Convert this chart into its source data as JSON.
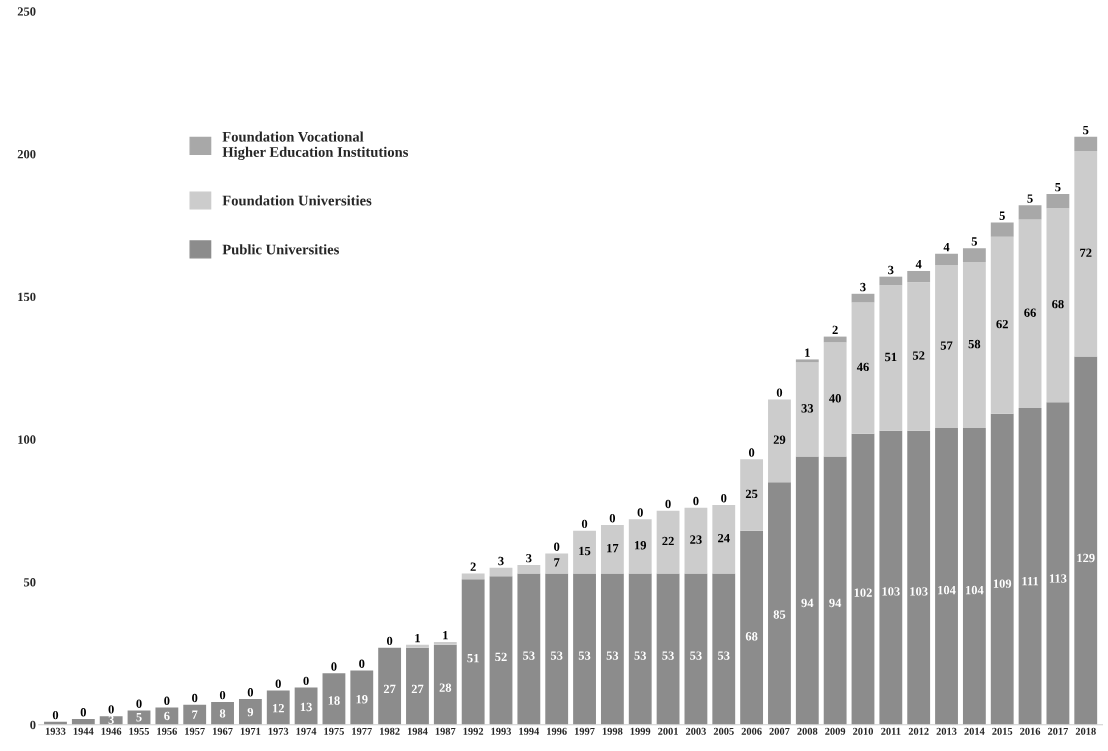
{
  "chart_data": {
    "type": "bar",
    "stacked": true,
    "categories": [
      "1933",
      "1944",
      "1946",
      "1955",
      "1956",
      "1957",
      "1967",
      "1971",
      "1973",
      "1974",
      "1975",
      "1977",
      "1982",
      "1984",
      "1987",
      "1992",
      "1993",
      "1994",
      "1996",
      "1997",
      "1998",
      "1999",
      "2001",
      "2003",
      "2005",
      "2006",
      "2007",
      "2008",
      "2009",
      "2010",
      "2011",
      "2012",
      "2013",
      "2014",
      "2015",
      "2016",
      "2017",
      "2018"
    ],
    "series": [
      {
        "name": "Public Universities",
        "color": "#8c8c8c",
        "values": [
          1,
          2,
          3,
          5,
          6,
          7,
          8,
          9,
          12,
          13,
          18,
          19,
          27,
          27,
          28,
          51,
          52,
          53,
          53,
          53,
          53,
          53,
          53,
          53,
          53,
          68,
          85,
          94,
          94,
          102,
          103,
          103,
          104,
          104,
          109,
          111,
          113,
          129
        ],
        "value_labels": [
          null,
          null,
          "3",
          "5",
          "6",
          "7",
          "8",
          "9",
          "12",
          "13",
          "18",
          "19",
          "27",
          "27",
          "28",
          "51",
          "52",
          "53",
          "53",
          "53",
          "53",
          "53",
          "53",
          "53",
          "53",
          "68",
          "85",
          "94",
          "94",
          "102",
          "103",
          "103",
          "104",
          "104",
          "109",
          "111",
          "113",
          "129"
        ]
      },
      {
        "name": "Foundation Universities",
        "color": "#cccccc",
        "values": [
          0,
          0,
          0,
          0,
          0,
          0,
          0,
          0,
          0,
          0,
          0,
          0,
          0,
          1,
          1,
          2,
          3,
          3,
          7,
          15,
          17,
          19,
          22,
          23,
          24,
          25,
          29,
          33,
          40,
          46,
          51,
          52,
          57,
          58,
          62,
          66,
          68,
          72
        ],
        "value_labels": [
          null,
          null,
          null,
          null,
          null,
          null,
          null,
          null,
          null,
          null,
          null,
          null,
          null,
          "1",
          "1",
          "2",
          "3",
          "3",
          "7",
          "15",
          "17",
          "19",
          "22",
          "23",
          "24",
          "25",
          "29",
          "33",
          "40",
          "46",
          "51",
          "52",
          "57",
          "58",
          "62",
          "66",
          "68",
          "72"
        ]
      },
      {
        "name": "Foundation Vocational\nHigher Education Institutions",
        "color": "#a8a8a8",
        "values": [
          0,
          0,
          0,
          0,
          0,
          0,
          0,
          0,
          0,
          0,
          0,
          0,
          0,
          0,
          0,
          0,
          0,
          0,
          0,
          0,
          0,
          0,
          0,
          0,
          0,
          0,
          0,
          1,
          2,
          3,
          3,
          4,
          4,
          5,
          5,
          5,
          5,
          5
        ],
        "value_labels": [
          "0",
          "0",
          "0",
          "0",
          "0",
          "0",
          "0",
          "0",
          "0",
          "0",
          "0",
          "0",
          "0",
          null,
          null,
          null,
          null,
          null,
          "0",
          "0",
          "0",
          "0",
          "0",
          "0",
          "0",
          "0",
          "0",
          "1",
          "2",
          "3",
          "3",
          "4",
          "4",
          "5",
          "5",
          "5",
          "5",
          "5"
        ]
      }
    ],
    "ylim": [
      0,
      250
    ],
    "yticks": [
      0,
      50,
      100,
      150,
      200,
      250
    ],
    "grid": false,
    "legend": "top left"
  }
}
